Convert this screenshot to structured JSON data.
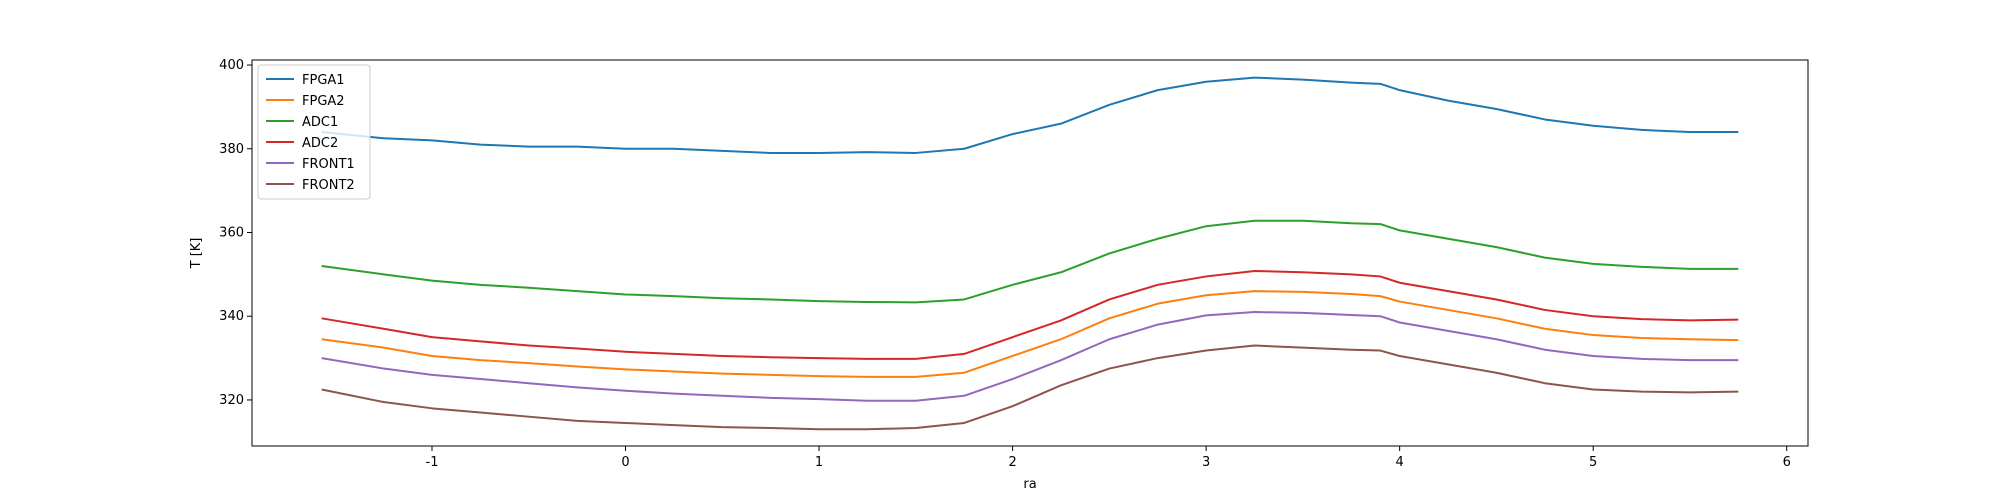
{
  "chart_data": {
    "type": "line",
    "x_label": "ra",
    "y_label": "T [K]",
    "x": [
      -1.57,
      -1.25,
      -1,
      -0.75,
      -0.5,
      -0.25,
      0,
      0.25,
      0.5,
      0.75,
      1,
      1.25,
      1.5,
      1.75,
      2,
      2.25,
      2.5,
      2.75,
      3,
      3.25,
      3.5,
      3.75,
      3.9,
      4,
      4.25,
      4.5,
      4.75,
      5,
      5.25,
      5.5,
      5.75
    ],
    "series": [
      {
        "name": "FPGA1",
        "color": "#1f77b4",
        "values": [
          384,
          382.5,
          382,
          381,
          380.5,
          380.5,
          380,
          380,
          379.5,
          379,
          379,
          379.2,
          379,
          380,
          383.5,
          386,
          390.5,
          394,
          396,
          397,
          396.5,
          395.8,
          395.5,
          394,
          391.5,
          389.5,
          387,
          385.5,
          384.5,
          384,
          384
        ]
      },
      {
        "name": "FPGA2",
        "color": "#ff7f0e",
        "values": [
          334.5,
          332.5,
          330.5,
          329.5,
          328.8,
          328,
          327.3,
          326.8,
          326.3,
          326,
          325.7,
          325.5,
          325.5,
          326.5,
          330.5,
          334.5,
          339.5,
          343,
          345,
          346,
          345.8,
          345.3,
          344.8,
          343.5,
          341.5,
          339.5,
          337,
          335.5,
          334.8,
          334.5,
          334.3
        ]
      },
      {
        "name": "ADC1",
        "color": "#2ca02c",
        "values": [
          352,
          350,
          348.5,
          347.5,
          346.8,
          346,
          345.2,
          344.8,
          344.3,
          344,
          343.6,
          343.4,
          343.3,
          344,
          347.5,
          350.5,
          355,
          358.5,
          361.5,
          362.8,
          362.8,
          362.2,
          362,
          360.5,
          358.5,
          356.5,
          354,
          352.5,
          351.8,
          351.3,
          351.3
        ]
      },
      {
        "name": "ADC2",
        "color": "#d62728",
        "values": [
          339.5,
          337,
          335,
          334,
          333,
          332.3,
          331.5,
          331,
          330.5,
          330.2,
          330,
          329.8,
          329.8,
          331,
          335,
          339,
          344,
          347.5,
          349.5,
          350.8,
          350.5,
          350,
          349.5,
          348,
          346,
          344,
          341.5,
          340,
          339.3,
          339,
          339.2
        ]
      },
      {
        "name": "FRONT1",
        "color": "#9467bd",
        "values": [
          330,
          327.5,
          326,
          325,
          324,
          323,
          322.2,
          321.5,
          321,
          320.5,
          320.2,
          319.8,
          319.8,
          321,
          325,
          329.5,
          334.5,
          338,
          340.2,
          341,
          340.8,
          340.3,
          340,
          338.5,
          336.5,
          334.5,
          332,
          330.5,
          329.8,
          329.5,
          329.5
        ]
      },
      {
        "name": "FRONT2",
        "color": "#8c564b",
        "values": [
          322.5,
          319.5,
          318,
          317,
          316,
          315,
          314.5,
          314,
          313.5,
          313.3,
          313,
          313,
          313.3,
          314.5,
          318.5,
          323.5,
          327.5,
          330,
          331.8,
          333,
          332.5,
          332,
          331.8,
          330.5,
          328.5,
          326.5,
          324,
          322.5,
          322,
          321.8,
          322
        ]
      }
    ],
    "xlim": [
      -1.93,
      6.11
    ],
    "ylim": [
      309,
      401.2
    ],
    "xticks": [
      -1,
      0,
      1,
      2,
      3,
      4,
      5,
      6
    ],
    "yticks": [
      320,
      340,
      360,
      380,
      400
    ],
    "legend": "upper left",
    "grid": false
  }
}
